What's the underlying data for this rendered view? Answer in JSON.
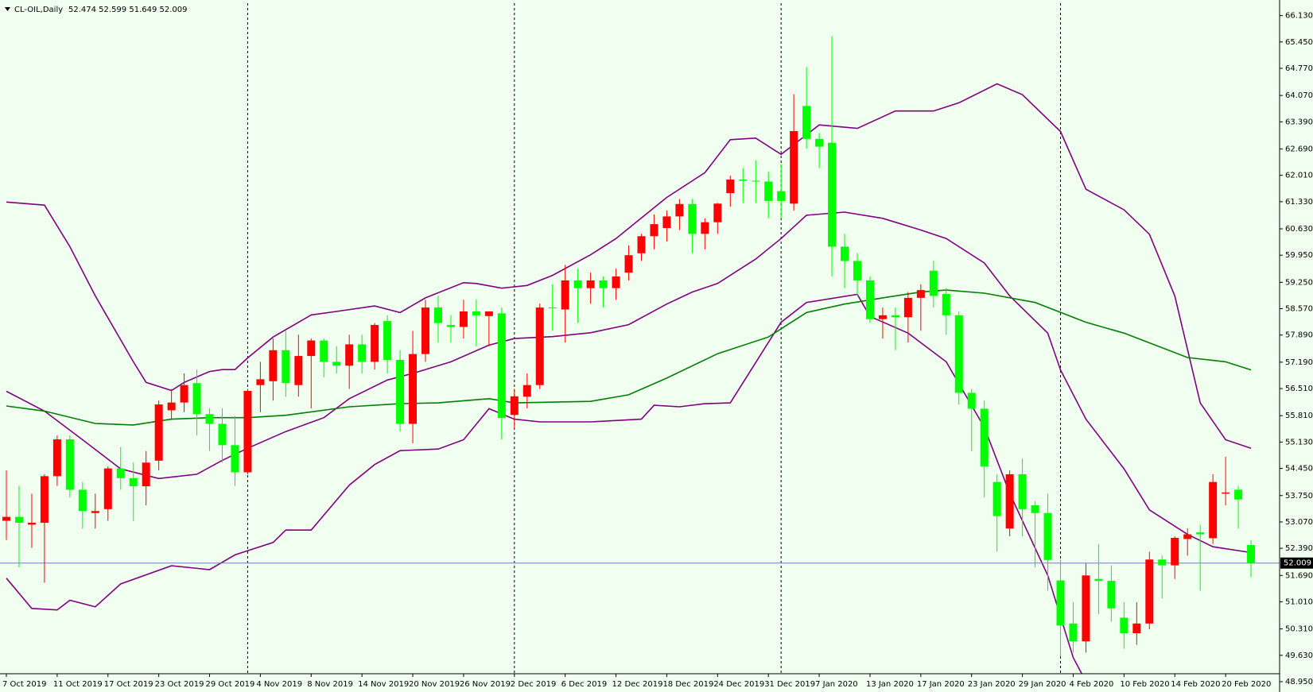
{
  "chart_data": {
    "type": "candlestick",
    "title": "CL-OIL,Daily",
    "info_text": "52.474 52.599 51.649 52.009",
    "categories": [
      "7 Oct 2019",
      null,
      null,
      null,
      "11 Oct 2019",
      null,
      null,
      null,
      "17 Oct 2019",
      null,
      null,
      null,
      "23 Oct 2019",
      null,
      null,
      null,
      "29 Oct 2019",
      null,
      null,
      null,
      "4 Nov 2019",
      null,
      null,
      null,
      "8 Nov 2019",
      null,
      null,
      null,
      "14 Nov 2019",
      null,
      null,
      null,
      "20 Nov 2019",
      null,
      null,
      null,
      "26 Nov 2019",
      null,
      null,
      null,
      "2 Dec 2019",
      null,
      null,
      null,
      "6 Dec 2019",
      null,
      null,
      null,
      "12 Dec 2019",
      null,
      null,
      null,
      "18 Dec 2019",
      null,
      null,
      null,
      "24 Dec 2019",
      null,
      null,
      null,
      "31 Dec 2019",
      null,
      null,
      null,
      "7 Jan 2020",
      null,
      null,
      null,
      "13 Jan 2020",
      null,
      null,
      null,
      "17 Jan 2020",
      null,
      null,
      null,
      "23 Jan 2020",
      null,
      null,
      null,
      "29 Jan 2020",
      null,
      null,
      null,
      "4 Feb 2020",
      null,
      null,
      null,
      "10 Feb 2020",
      null,
      null,
      null,
      "14 Feb 2020",
      null,
      null,
      null,
      "20 Feb 2020",
      null,
      null
    ],
    "open": [
      53.1,
      53.2,
      53.0,
      53.05,
      54.25,
      55.2,
      53.9,
      53.3,
      53.4,
      54.45,
      54.2,
      53.99,
      54.65,
      55.95,
      56.15,
      56.65,
      55.85,
      55.6,
      55.05,
      54.35,
      56.6,
      56.7,
      57.5,
      56.6,
      57.35,
      57.75,
      57.2,
      57.1,
      57.65,
      57.2,
      58.25,
      57.25,
      55.6,
      57.4,
      58.6,
      58.15,
      58.1,
      58.5,
      58.38,
      58.45,
      55.83,
      56.3,
      56.6,
      58.6,
      58.55,
      59.3,
      59.1,
      59.3,
      59.1,
      59.5,
      60.0,
      60.44,
      60.65,
      60.95,
      61.27,
      60.5,
      60.8,
      61.55,
      61.9,
      61.87,
      61.85,
      61.6,
      61.28,
      63.8,
      62.95,
      62.85,
      60.17,
      59.8,
      59.3,
      58.3,
      58.4,
      58.35,
      58.85,
      59.55,
      58.95,
      58.4,
      56.4,
      55.99,
      54.1,
      52.9,
      54.3,
      53.5,
      53.3,
      51.56,
      50.45,
      49.99,
      51.6,
      51.55,
      50.6,
      50.2,
      50.45,
      52.1,
      51.95,
      52.63,
      52.8,
      52.65,
      53.8,
      53.9,
      52.474
    ],
    "high": [
      54.4,
      54.0,
      53.8,
      54.3,
      55.3,
      55.3,
      54.1,
      53.8,
      54.5,
      55.0,
      54.6,
      54.9,
      56.2,
      56.5,
      56.9,
      57.0,
      56.0,
      56.0,
      55.8,
      56.5,
      57.2,
      57.8,
      58.0,
      57.9,
      57.8,
      57.8,
      57.6,
      57.9,
      57.9,
      58.2,
      58.4,
      57.5,
      58.0,
      58.8,
      58.9,
      58.4,
      58.8,
      58.8,
      58.5,
      58.6,
      56.5,
      56.9,
      58.7,
      59.2,
      59.7,
      59.6,
      59.5,
      59.4,
      59.6,
      60.2,
      60.5,
      61.0,
      61.1,
      61.4,
      61.4,
      60.9,
      61.3,
      62.0,
      62.2,
      62.4,
      62.1,
      62.3,
      64.1,
      64.8,
      63.1,
      65.6,
      60.5,
      60.0,
      59.4,
      58.6,
      58.6,
      59.0,
      59.2,
      59.8,
      59.1,
      58.5,
      56.5,
      56.2,
      54.3,
      54.4,
      54.7,
      53.6,
      53.8,
      52.1,
      51.0,
      52.0,
      52.5,
      51.95,
      51.0,
      51.0,
      52.3,
      52.2,
      52.7,
      52.9,
      53.0,
      54.3,
      54.75,
      54.0,
      52.599
    ],
    "low": [
      52.6,
      51.9,
      52.4,
      51.5,
      54.0,
      53.7,
      52.9,
      52.9,
      53.1,
      53.9,
      53.1,
      53.5,
      54.4,
      55.7,
      55.9,
      55.3,
      54.9,
      54.6,
      54.0,
      54.3,
      55.9,
      56.2,
      56.3,
      56.3,
      56.0,
      56.8,
      56.9,
      56.5,
      56.9,
      57.0,
      56.9,
      55.4,
      55.1,
      57.2,
      57.7,
      57.7,
      57.8,
      57.6,
      57.6,
      55.2,
      55.5,
      56.0,
      56.5,
      58.0,
      57.7,
      58.2,
      58.7,
      58.6,
      58.8,
      59.3,
      59.8,
      60.1,
      60.3,
      60.6,
      60.0,
      60.1,
      60.5,
      61.2,
      61.3,
      61.3,
      60.9,
      60.9,
      61.1,
      62.7,
      62.2,
      59.4,
      59.1,
      58.9,
      58.2,
      57.8,
      57.5,
      57.7,
      58.0,
      58.6,
      57.9,
      56.1,
      54.9,
      53.7,
      52.3,
      52.7,
      52.7,
      51.9,
      51.3,
      49.6,
      49.7,
      49.7,
      50.7,
      50.5,
      49.8,
      49.9,
      50.3,
      51.1,
      51.6,
      52.2,
      51.3,
      52.5,
      53.5,
      52.9,
      51.649
    ],
    "close": [
      53.2,
      53.05,
      53.05,
      54.25,
      55.2,
      53.9,
      53.35,
      53.35,
      54.45,
      54.2,
      53.99,
      54.6,
      56.1,
      56.15,
      56.6,
      55.85,
      55.6,
      55.05,
      54.35,
      56.45,
      56.75,
      57.5,
      56.65,
      57.35,
      57.75,
      57.2,
      57.1,
      57.65,
      57.2,
      58.15,
      57.25,
      55.6,
      57.4,
      58.6,
      58.2,
      58.1,
      58.5,
      58.4,
      58.5,
      55.75,
      56.31,
      56.6,
      58.6,
      58.58,
      59.3,
      59.1,
      59.3,
      59.1,
      59.4,
      59.95,
      60.44,
      60.75,
      60.95,
      61.27,
      60.5,
      60.8,
      61.28,
      61.9,
      61.87,
      61.85,
      61.35,
      61.35,
      63.15,
      62.95,
      62.75,
      60.17,
      59.8,
      59.3,
      58.3,
      58.4,
      58.35,
      58.85,
      59.05,
      58.9,
      58.4,
      56.4,
      55.99,
      54.5,
      53.22,
      54.3,
      53.4,
      53.3,
      52.09,
      50.4,
      49.99,
      51.69,
      51.55,
      50.84,
      50.2,
      50.45,
      52.1,
      51.95,
      52.66,
      52.75,
      52.75,
      54.1,
      53.83,
      53.65,
      52.009
    ],
    "up_color": "#ff0000",
    "down_color": "#00ff00",
    "series": [
      {
        "color": "#800080",
        "x": [
          0,
          3,
          5,
          7,
          10,
          11,
          13,
          14,
          16,
          17,
          18,
          19,
          21,
          24,
          26,
          29,
          31,
          33,
          36,
          37,
          39,
          41,
          43,
          46,
          48,
          50,
          52,
          55,
          57,
          59,
          61,
          64,
          67,
          70,
          73,
          75,
          78,
          80,
          83,
          85,
          88,
          90,
          92,
          94,
          96,
          98
        ],
        "values": [
          61.32,
          61.24,
          60.17,
          58.9,
          57.2,
          56.67,
          56.46,
          56.67,
          56.95,
          57.0,
          57.0,
          57.3,
          57.84,
          58.41,
          58.5,
          58.64,
          58.47,
          58.85,
          59.24,
          59.22,
          59.1,
          59.17,
          59.43,
          59.96,
          60.38,
          60.91,
          61.44,
          62.08,
          62.93,
          62.97,
          62.55,
          63.31,
          63.22,
          63.67,
          63.67,
          63.88,
          64.37,
          64.09,
          63.14,
          61.65,
          61.12,
          60.49,
          58.9,
          56.14,
          55.19,
          54.97
        ]
      },
      {
        "color": "#800080",
        "x": [
          0,
          3,
          6,
          9,
          12,
          15,
          17,
          19,
          22,
          25,
          27,
          30,
          32,
          35,
          38,
          40,
          43,
          46,
          49,
          52,
          54,
          56,
          59,
          61,
          63,
          66,
          69,
          72,
          74,
          77,
          79,
          82,
          83,
          85,
          88,
          90,
          93,
          95,
          98
        ],
        "values": [
          56.44,
          55.93,
          55.19,
          54.44,
          54.19,
          54.3,
          54.66,
          54.97,
          55.4,
          55.76,
          56.25,
          56.73,
          56.9,
          57.2,
          57.63,
          57.8,
          57.85,
          57.95,
          58.16,
          58.69,
          59.0,
          59.22,
          59.85,
          60.38,
          60.98,
          61.06,
          60.9,
          60.6,
          60.38,
          59.75,
          58.9,
          57.94,
          56.99,
          55.72,
          54.44,
          53.38,
          52.75,
          52.43,
          52.28
        ]
      },
      {
        "color": "#800080",
        "x": [
          0,
          2,
          4,
          5,
          7,
          9,
          13,
          16,
          18,
          21,
          22,
          24,
          27,
          29,
          31,
          34,
          36,
          38,
          40,
          42,
          46,
          50,
          51,
          53,
          55,
          57,
          61,
          63,
          67,
          68,
          71,
          74,
          77,
          79,
          82,
          84,
          85,
          90,
          96,
          98
        ],
        "values": [
          51.62,
          50.84,
          50.8,
          51.05,
          50.88,
          51.47,
          51.94,
          51.84,
          52.22,
          52.54,
          52.86,
          52.86,
          54.02,
          54.55,
          54.91,
          54.95,
          55.19,
          55.99,
          55.72,
          55.65,
          55.65,
          55.72,
          56.08,
          56.04,
          56.12,
          56.14,
          58.22,
          58.73,
          58.94,
          58.37,
          57.94,
          57.2,
          55.51,
          53.81,
          51.69,
          49.57,
          48.95,
          null,
          48.93,
          49.0
        ]
      },
      {
        "color": "#007f00",
        "x": [
          0,
          3,
          7,
          10,
          13,
          16,
          19,
          22,
          27,
          31,
          34,
          38,
          40,
          46,
          49,
          52,
          56,
          60,
          63,
          66,
          69,
          72,
          74,
          77,
          81,
          85,
          88,
          93,
          96,
          98
        ],
        "values": [
          56.06,
          55.93,
          55.61,
          55.57,
          55.72,
          55.76,
          55.76,
          55.82,
          56.04,
          56.12,
          56.14,
          56.25,
          56.14,
          56.18,
          56.35,
          56.78,
          57.41,
          57.84,
          58.47,
          58.69,
          58.85,
          59.0,
          59.05,
          58.97,
          58.73,
          58.22,
          57.94,
          57.31,
          57.2,
          56.99
        ]
      }
    ],
    "ylim": [
      48.95,
      66.45
    ],
    "yticks": [
      {
        "value": 66.13,
        "label": "66.130"
      },
      {
        "value": 65.45,
        "label": "65.450"
      },
      {
        "value": 64.77,
        "label": "64.770"
      },
      {
        "value": 64.07,
        "label": "64.070"
      },
      {
        "value": 63.39,
        "label": "63.390"
      },
      {
        "value": 62.69,
        "label": "62.690"
      },
      {
        "value": 62.01,
        "label": "62.010"
      },
      {
        "value": 61.33,
        "label": "61.330"
      },
      {
        "value": 60.63,
        "label": "60.630"
      },
      {
        "value": 59.95,
        "label": "59.950"
      },
      {
        "value": 59.25,
        "label": "59.250"
      },
      {
        "value": 58.57,
        "label": "58.570"
      },
      {
        "value": 57.89,
        "label": "57.890"
      },
      {
        "value": 57.19,
        "label": "57.190"
      },
      {
        "value": 56.51,
        "label": "56.510"
      },
      {
        "value": 55.81,
        "label": "55.810"
      },
      {
        "value": 55.13,
        "label": "55.130"
      },
      {
        "value": 54.45,
        "label": "54.450"
      },
      {
        "value": 53.75,
        "label": "53.750"
      },
      {
        "value": 53.07,
        "label": "53.070"
      },
      {
        "value": 52.39,
        "label": "52.390"
      },
      {
        "value": 51.69,
        "label": "51.690"
      },
      {
        "value": 51.01,
        "label": "51.010"
      },
      {
        "value": 50.31,
        "label": "50.310"
      },
      {
        "value": 49.63,
        "label": "49.630"
      },
      {
        "value": 48.95,
        "label": "48.950"
      }
    ],
    "current_price": {
      "value": 52.009,
      "label": "52.009"
    },
    "current_price_color": "#7080b0",
    "separators": [
      19,
      40,
      61,
      83
    ]
  }
}
